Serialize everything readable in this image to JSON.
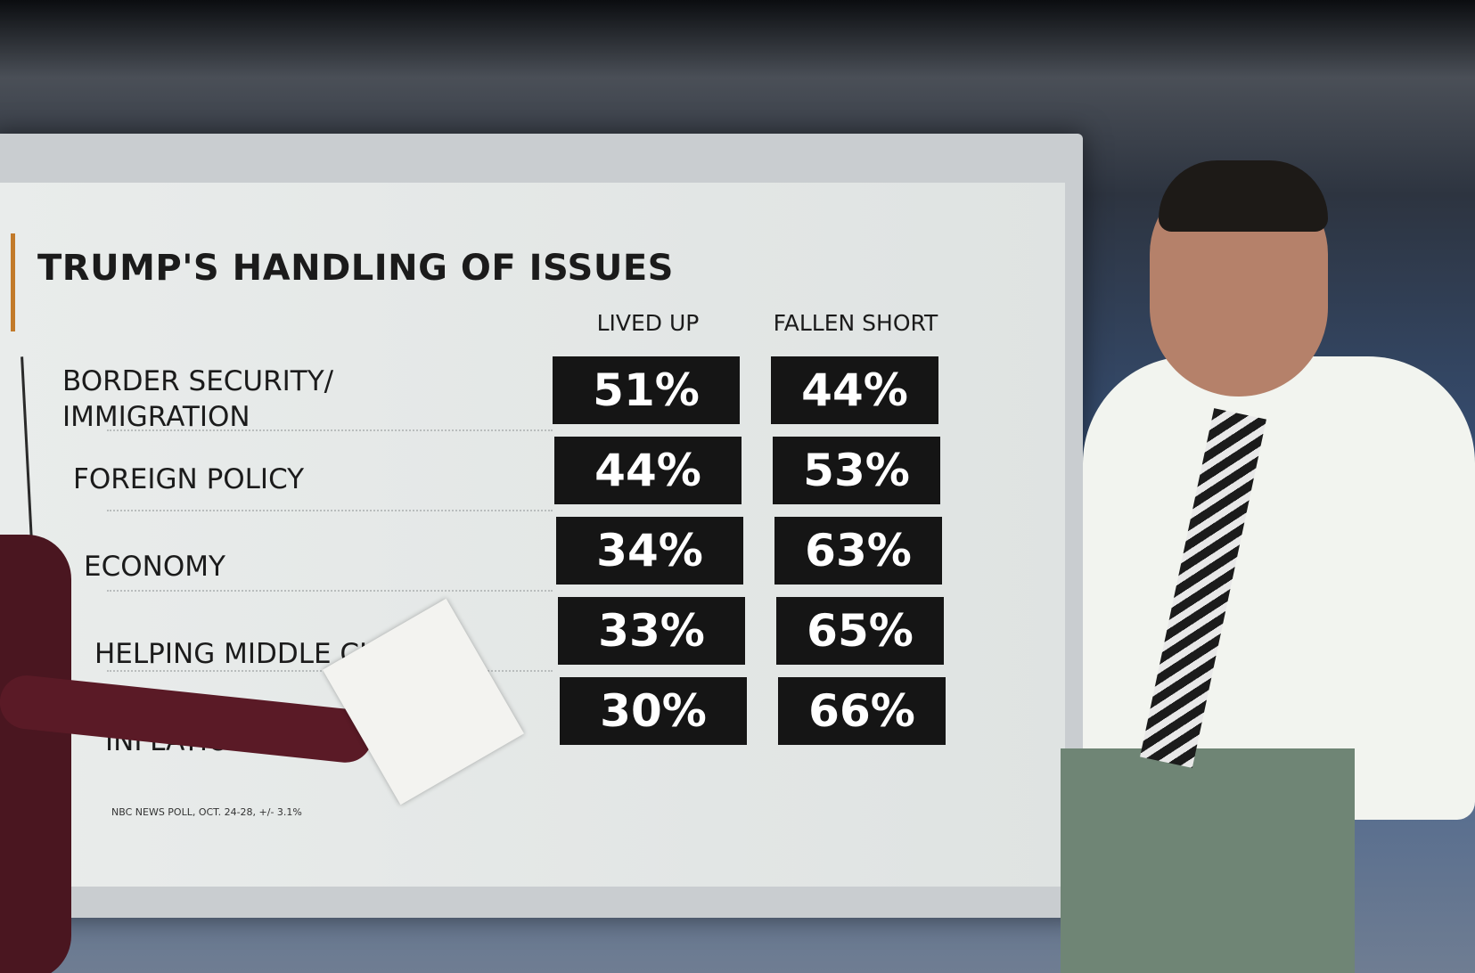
{
  "header": {
    "title": "TRUMP'S HANDLING OF ISSUES"
  },
  "table": {
    "columns": [
      "LIVED UP",
      "FALLEN SHORT"
    ],
    "rows": [
      [
        "BORDER SECURITY/\nIMMIGRATION",
        "51%",
        "44%"
      ],
      [
        "FOREIGN POLICY",
        "44%",
        "53%"
      ],
      [
        "ECONOMY",
        "34%",
        "63%"
      ],
      [
        "HELPING MIDDLE CLASS",
        "33%",
        "65%"
      ],
      [
        "INFLATION",
        "30%",
        "66%"
      ]
    ]
  },
  "source": "NBC NEWS POLL, OCT. 24-28, +/- 3.1%"
}
